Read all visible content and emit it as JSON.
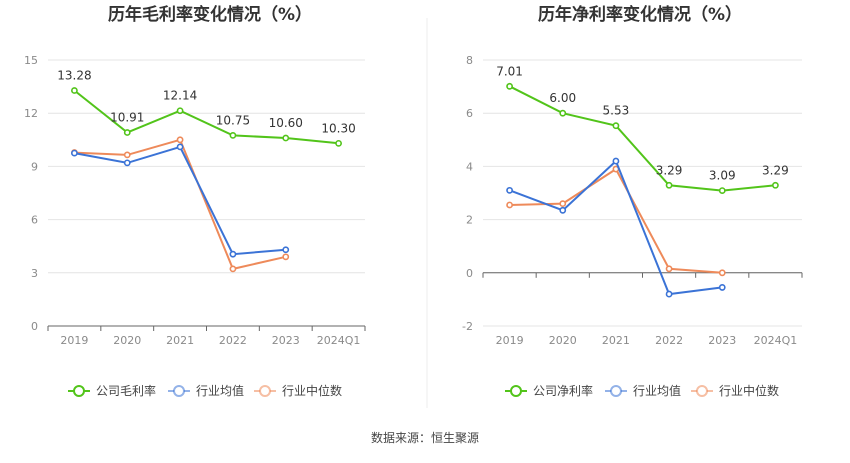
{
  "source": "数据来源：恒生聚源",
  "chart_data": [
    {
      "type": "line",
      "title": "历年毛利率变化情况（%）",
      "categories": [
        "2019",
        "2020",
        "2021",
        "2022",
        "2023",
        "2024Q1"
      ],
      "ylim": [
        0,
        15
      ],
      "yticks": [
        0,
        3,
        6,
        9,
        12,
        15
      ],
      "grid": true,
      "legend": "bottom",
      "series": [
        {
          "name": "公司毛利率",
          "color": "#52c41a",
          "values": [
            13.28,
            10.91,
            12.14,
            10.75,
            10.6,
            10.3
          ],
          "labels": [
            "13.28",
            "10.91",
            "12.14",
            "10.75",
            "10.60",
            "10.30"
          ]
        },
        {
          "name": "行业均值",
          "color": "#3b73d6",
          "values": [
            9.75,
            9.2,
            10.1,
            4.05,
            4.3,
            null
          ]
        },
        {
          "name": "行业中位数",
          "color": "#ee8a5a",
          "values": [
            9.78,
            9.65,
            10.5,
            3.22,
            3.9,
            null
          ]
        }
      ]
    },
    {
      "type": "line",
      "title": "历年净利率变化情况（%）",
      "categories": [
        "2019",
        "2020",
        "2021",
        "2022",
        "2023",
        "2024Q1"
      ],
      "ylim": [
        -2,
        8
      ],
      "yticks": [
        -2,
        0,
        2,
        4,
        6,
        8
      ],
      "grid": true,
      "legend": "bottom",
      "series": [
        {
          "name": "公司净利率",
          "color": "#52c41a",
          "values": [
            7.01,
            6.0,
            5.53,
            3.29,
            3.09,
            3.29
          ],
          "labels": [
            "7.01",
            "6.00",
            "5.53",
            "3.29",
            "3.09",
            "3.29"
          ]
        },
        {
          "name": "行业均值",
          "color": "#3b73d6",
          "values": [
            3.1,
            2.35,
            4.2,
            -0.8,
            -0.55,
            null
          ]
        },
        {
          "name": "行业中位数",
          "color": "#ee8a5a",
          "values": [
            2.55,
            2.6,
            3.9,
            0.15,
            0.0,
            null
          ]
        }
      ]
    }
  ]
}
